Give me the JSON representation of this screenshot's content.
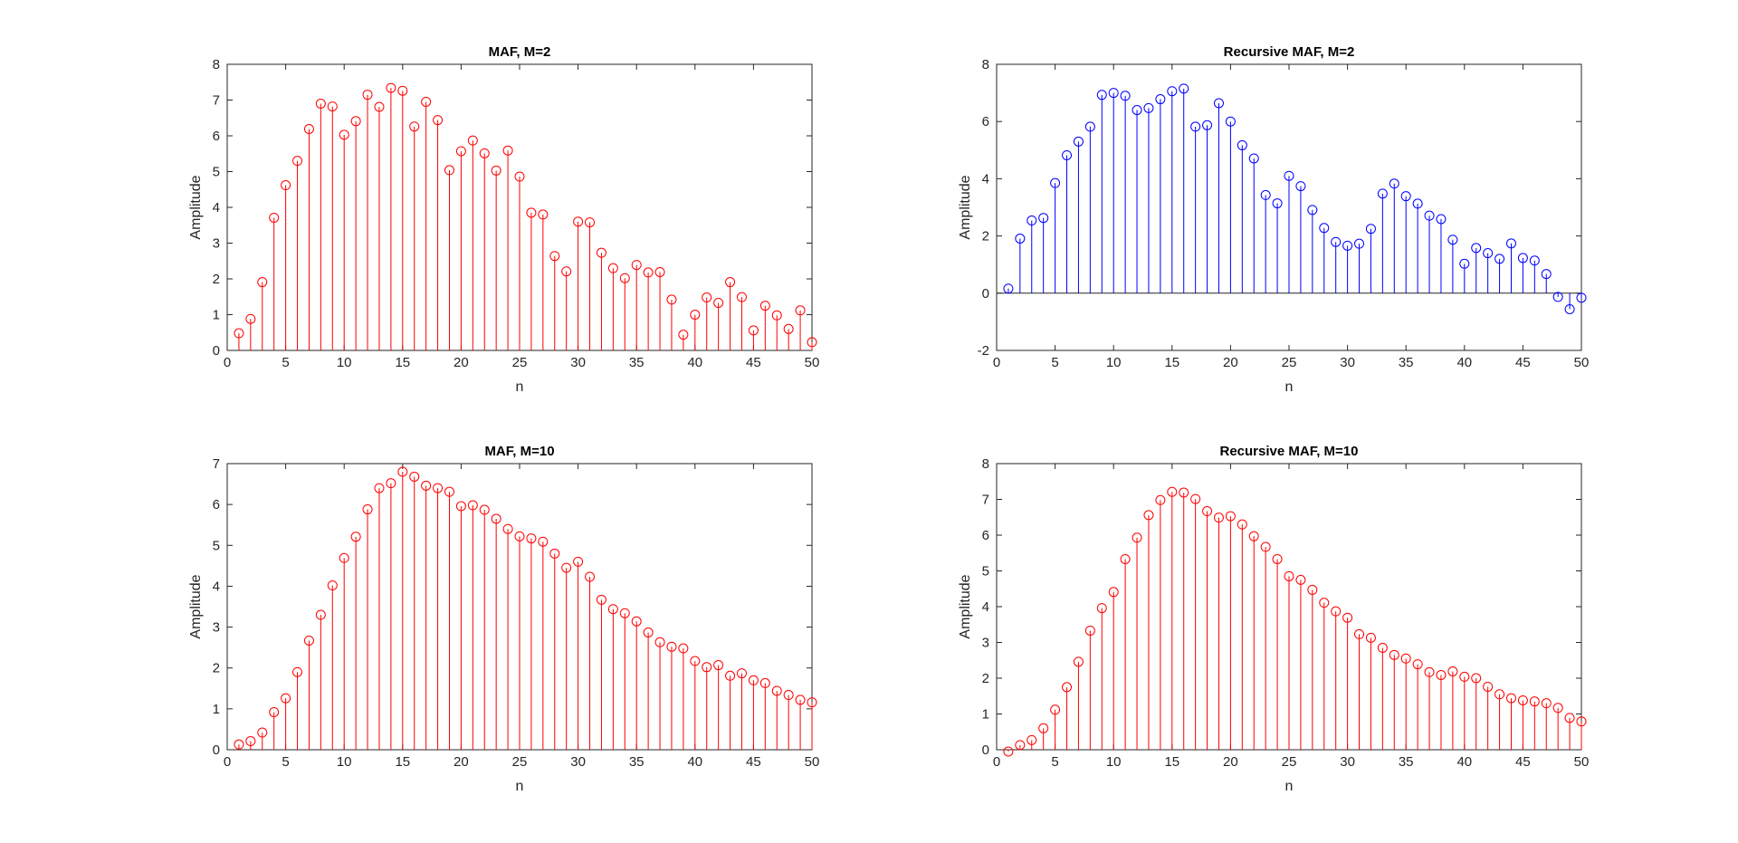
{
  "chart_data": [
    {
      "type": "stem",
      "title": "MAF, M=2",
      "xlabel": "n",
      "ylabel": "Amplitude",
      "xlim": [
        0,
        50
      ],
      "ylim": [
        0,
        8
      ],
      "xticks": [
        0,
        5,
        10,
        15,
        20,
        25,
        30,
        35,
        40,
        45,
        50
      ],
      "yticks": [
        0,
        1,
        2,
        3,
        4,
        5,
        6,
        7,
        8
      ],
      "color": "#ff0000",
      "grid": false,
      "x": [
        1,
        2,
        3,
        4,
        5,
        6,
        7,
        8,
        9,
        10,
        11,
        12,
        13,
        14,
        15,
        16,
        17,
        18,
        19,
        20,
        21,
        22,
        23,
        24,
        25,
        26,
        27,
        28,
        29,
        30,
        31,
        32,
        33,
        34,
        35,
        36,
        37,
        38,
        39,
        40,
        41,
        42,
        43,
        44,
        45,
        46,
        47,
        48,
        49,
        50
      ],
      "y": [
        0.48,
        0.88,
        1.91,
        3.71,
        4.62,
        5.3,
        6.19,
        6.9,
        6.82,
        6.03,
        6.41,
        7.15,
        6.81,
        7.34,
        7.26,
        6.26,
        6.95,
        6.44,
        5.04,
        5.57,
        5.87,
        5.51,
        5.03,
        5.59,
        4.86,
        3.85,
        3.8,
        2.64,
        2.21,
        3.6,
        3.58,
        2.73,
        2.3,
        2.02,
        2.39,
        2.18,
        2.19,
        1.42,
        0.44,
        1.0,
        1.48,
        1.33,
        1.91,
        1.49,
        0.56,
        1.25,
        0.98,
        0.6,
        1.12,
        0.23
      ]
    },
    {
      "type": "stem",
      "title": "Recursive MAF, M=2",
      "xlabel": "n",
      "ylabel": "Amplitude",
      "xlim": [
        0,
        50
      ],
      "ylim": [
        -2,
        8
      ],
      "xticks": [
        0,
        5,
        10,
        15,
        20,
        25,
        30,
        35,
        40,
        45,
        50
      ],
      "yticks": [
        -2,
        0,
        2,
        4,
        6,
        8
      ],
      "color": "#0000ff",
      "grid": false,
      "x": [
        1,
        2,
        3,
        4,
        5,
        6,
        7,
        8,
        9,
        10,
        11,
        12,
        13,
        14,
        15,
        16,
        17,
        18,
        19,
        20,
        21,
        22,
        23,
        24,
        25,
        26,
        27,
        28,
        29,
        30,
        31,
        32,
        33,
        34,
        35,
        36,
        37,
        38,
        39,
        40,
        41,
        42,
        43,
        44,
        45,
        46,
        47,
        48,
        49,
        50
      ],
      "y": [
        0.16,
        1.91,
        2.54,
        2.63,
        3.85,
        4.82,
        5.3,
        5.82,
        6.93,
        7.0,
        6.9,
        6.4,
        6.47,
        6.78,
        7.06,
        7.15,
        5.82,
        5.87,
        6.64,
        6.0,
        5.17,
        4.71,
        3.43,
        3.14,
        4.1,
        3.74,
        2.91,
        2.28,
        1.79,
        1.66,
        1.73,
        2.25,
        3.48,
        3.83,
        3.39,
        3.13,
        2.71,
        2.59,
        1.87,
        1.03,
        1.58,
        1.4,
        1.2,
        1.74,
        1.23,
        1.14,
        0.67,
        -0.13,
        -0.56,
        -0.16
      ]
    },
    {
      "type": "stem",
      "title": "MAF, M=10",
      "xlabel": "n",
      "ylabel": "Amplitude",
      "xlim": [
        0,
        50
      ],
      "ylim": [
        0,
        7
      ],
      "xticks": [
        0,
        5,
        10,
        15,
        20,
        25,
        30,
        35,
        40,
        45,
        50
      ],
      "yticks": [
        0,
        1,
        2,
        3,
        4,
        5,
        6,
        7
      ],
      "color": "#ff0000",
      "grid": false,
      "x": [
        1,
        2,
        3,
        4,
        5,
        6,
        7,
        8,
        9,
        10,
        11,
        12,
        13,
        14,
        15,
        16,
        17,
        18,
        19,
        20,
        21,
        22,
        23,
        24,
        25,
        26,
        27,
        28,
        29,
        30,
        31,
        32,
        33,
        34,
        35,
        36,
        37,
        38,
        39,
        40,
        41,
        42,
        43,
        44,
        45,
        46,
        47,
        48,
        49,
        50
      ],
      "y": [
        0.13,
        0.21,
        0.42,
        0.92,
        1.26,
        1.9,
        2.67,
        3.3,
        4.02,
        4.69,
        5.21,
        5.88,
        6.4,
        6.52,
        6.8,
        6.68,
        6.46,
        6.4,
        6.31,
        5.96,
        5.98,
        5.87,
        5.65,
        5.4,
        5.22,
        5.17,
        5.09,
        4.8,
        4.45,
        4.6,
        4.23,
        3.67,
        3.44,
        3.34,
        3.14,
        2.87,
        2.63,
        2.52,
        2.48,
        2.17,
        2.02,
        2.07,
        1.81,
        1.87,
        1.7,
        1.63,
        1.44,
        1.34,
        1.22,
        1.16
      ]
    },
    {
      "type": "stem",
      "title": "Recursive MAF, M=10",
      "xlabel": "n",
      "ylabel": "Amplitude",
      "xlim": [
        0,
        50
      ],
      "ylim": [
        0,
        8
      ],
      "xticks": [
        0,
        5,
        10,
        15,
        20,
        25,
        30,
        35,
        40,
        45,
        50
      ],
      "yticks": [
        0,
        1,
        2,
        3,
        4,
        5,
        6,
        7,
        8
      ],
      "color": "#ff0000",
      "grid": false,
      "x": [
        1,
        2,
        3,
        4,
        5,
        6,
        7,
        8,
        9,
        10,
        11,
        12,
        13,
        14,
        15,
        16,
        17,
        18,
        19,
        20,
        21,
        22,
        23,
        24,
        25,
        26,
        27,
        28,
        29,
        30,
        31,
        32,
        33,
        34,
        35,
        36,
        37,
        38,
        39,
        40,
        41,
        42,
        43,
        44,
        45,
        46,
        47,
        48,
        49,
        50
      ],
      "y": [
        -0.05,
        0.13,
        0.27,
        0.6,
        1.12,
        1.75,
        2.46,
        3.33,
        3.96,
        4.41,
        5.33,
        5.93,
        6.56,
        6.98,
        7.21,
        7.19,
        7.01,
        6.67,
        6.49,
        6.53,
        6.3,
        5.97,
        5.67,
        5.33,
        4.85,
        4.75,
        4.47,
        4.11,
        3.87,
        3.69,
        3.23,
        3.13,
        2.85,
        2.65,
        2.55,
        2.39,
        2.17,
        2.09,
        2.19,
        2.04,
        2.0,
        1.76,
        1.55,
        1.44,
        1.38,
        1.35,
        1.3,
        1.17,
        0.89,
        0.79
      ]
    }
  ]
}
